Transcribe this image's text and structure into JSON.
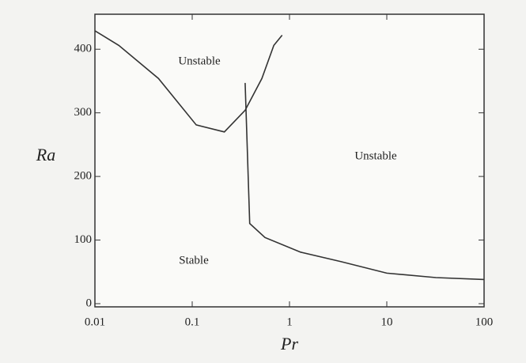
{
  "chart_data": {
    "type": "line",
    "x_label": "Pr",
    "y_label": "Ra",
    "annotations": [
      "Unstable",
      "Unstable",
      "Stable"
    ],
    "xscale": "log",
    "xlim": [
      0.01,
      100
    ],
    "xticks": [
      0.01,
      0.1,
      1,
      10,
      100
    ],
    "ylim": [
      -5,
      455
    ],
    "yticks": [
      0,
      100,
      200,
      300,
      400
    ],
    "series": [
      {
        "color": "#333333",
        "x": [
          0.01,
          0.0176,
          0.045,
          0.11,
          0.214,
          0.35,
          0.52,
          0.69,
          0.84
        ],
        "values": [
          429,
          406,
          354,
          281,
          270,
          304,
          354,
          406,
          422
        ]
      },
      {
        "color": "#333333",
        "x": [
          0.35,
          0.39,
          0.56,
          1.3,
          3.4,
          10,
          32,
          100
        ],
        "values": [
          347,
          126,
          104,
          81,
          66,
          48,
          41,
          38
        ]
      }
    ]
  }
}
